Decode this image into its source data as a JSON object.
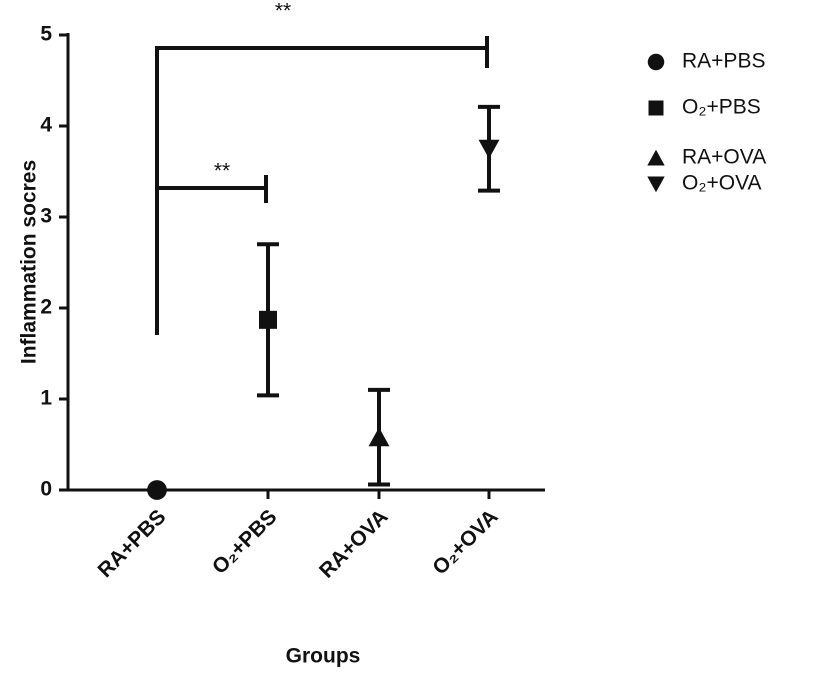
{
  "chart_data": {
    "type": "scatter",
    "x_label": "Groups",
    "y_label": "Inflammation socres",
    "categories": [
      "RA+PBS",
      "O₂+PBS",
      "RA+OVA",
      "O₂+OVA"
    ],
    "values": [
      0,
      1.87,
      0.58,
      3.75
    ],
    "errors": [
      null,
      0.83,
      0.52,
      0.46
    ],
    "markers": [
      "circle",
      "square",
      "triangle-up",
      "triangle-down"
    ],
    "color": "#111111",
    "ylim": [
      0,
      5
    ],
    "yticks": [
      0,
      1,
      2,
      3,
      4,
      5
    ],
    "annotations": [
      "**",
      "**"
    ]
  }
}
